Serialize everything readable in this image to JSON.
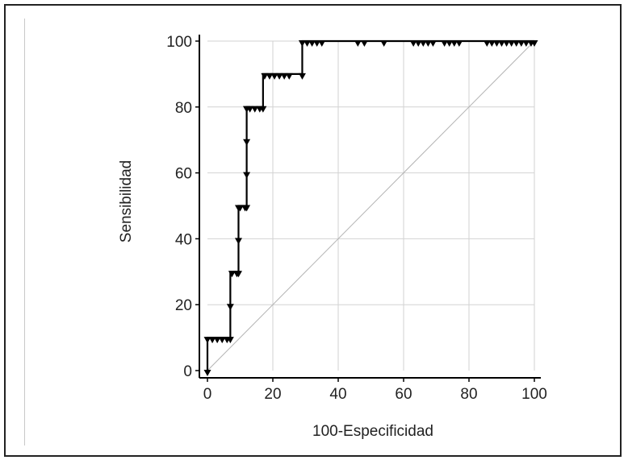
{
  "chart_data": {
    "type": "line",
    "title": "",
    "xlabel": "100-Especificidad",
    "ylabel": "Sensibilidad",
    "xlim": [
      0,
      100
    ],
    "ylim": [
      0,
      100
    ],
    "xticks": [
      0,
      20,
      40,
      60,
      80,
      100
    ],
    "yticks": [
      0,
      20,
      40,
      60,
      80,
      100
    ],
    "grid": true,
    "series": [
      {
        "style": "step",
        "color": "#000000",
        "x": [
          0,
          0,
          7,
          7,
          9.5,
          9.5,
          12,
          12,
          17,
          17,
          29,
          29,
          100
        ],
        "y": [
          0,
          10,
          10,
          30,
          30,
          50,
          50,
          80,
          80,
          90,
          90,
          100,
          100
        ]
      },
      {
        "style": "diagonal",
        "color": "#b4b4b4",
        "x": [
          0,
          100
        ],
        "y": [
          0,
          100
        ]
      }
    ],
    "markers": {
      "symbol": "down-triangle",
      "x": [
        0,
        0,
        1.5,
        3,
        4.5,
        6,
        7,
        7,
        7.5,
        9,
        9.5,
        9.5,
        9.5,
        10,
        11.5,
        12,
        12,
        12,
        12,
        12,
        13,
        14.5,
        16,
        17,
        17.5,
        19,
        20.5,
        22,
        23.5,
        25,
        29,
        29,
        30.5,
        32,
        33.5,
        35,
        46,
        48,
        54,
        63,
        64.5,
        66,
        67.5,
        69,
        72.5,
        74,
        75.5,
        77,
        85.5,
        87,
        88.5,
        90,
        91.5,
        93,
        94.5,
        96,
        97.5,
        99,
        100
      ],
      "y": [
        0,
        10,
        10,
        10,
        10,
        10,
        10,
        20,
        30,
        30,
        30,
        40,
        50,
        50,
        50,
        50,
        60,
        70,
        80,
        80,
        80,
        80,
        80,
        80,
        90,
        90,
        90,
        90,
        90,
        90,
        90,
        100,
        100,
        100,
        100,
        100,
        100,
        100,
        100,
        100,
        100,
        100,
        100,
        100,
        100,
        100,
        100,
        100,
        100,
        100,
        100,
        100,
        100,
        100,
        100,
        100,
        100,
        100,
        100
      ]
    }
  }
}
